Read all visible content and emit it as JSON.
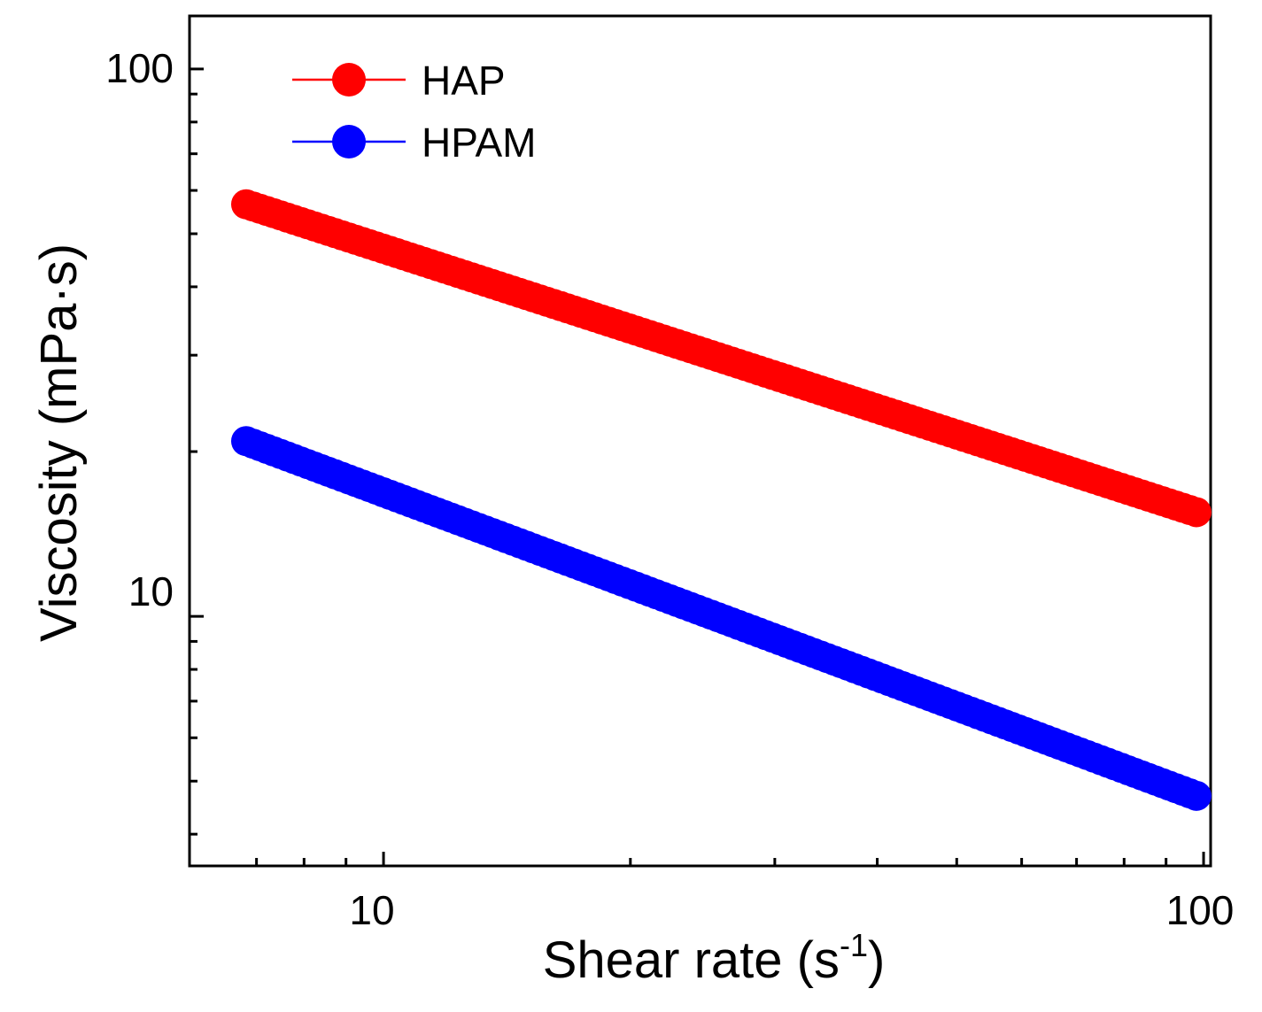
{
  "chart_data": {
    "type": "scatter",
    "title": "",
    "xlabel": "Shear rate (s",
    "xlabel_sup": "-1",
    "xlabel_close": ")",
    "ylabel": "Viscosity (mPa·s)",
    "xscale": "log",
    "yscale": "log",
    "xlim": [
      5.8,
      102
    ],
    "ylim": [
      3.5,
      125
    ],
    "x_ticks": [
      {
        "value": 10,
        "label": "10"
      },
      {
        "value": 100,
        "label": "100"
      }
    ],
    "y_ticks": [
      {
        "value": 10,
        "label": "10"
      },
      {
        "value": 100,
        "label": "100"
      }
    ],
    "x_minor_ticks": [
      7,
      8,
      9,
      20,
      30,
      40,
      50,
      60,
      70,
      80,
      90
    ],
    "y_minor_ticks": [
      4,
      5,
      6,
      7,
      8,
      9,
      20,
      30,
      40,
      50,
      60,
      70,
      80,
      90
    ],
    "legend_position": "top-left",
    "series": [
      {
        "name": "HAP",
        "color": "#ff0000",
        "x_start": 6.8,
        "x_end": 98,
        "y_start": 56.6,
        "y_end": 15.5,
        "points": 140
      },
      {
        "name": "HPAM",
        "color": "#0000ff",
        "x_start": 6.8,
        "x_end": 98,
        "y_start": 20.9,
        "y_end": 4.7,
        "points": 140
      }
    ]
  }
}
